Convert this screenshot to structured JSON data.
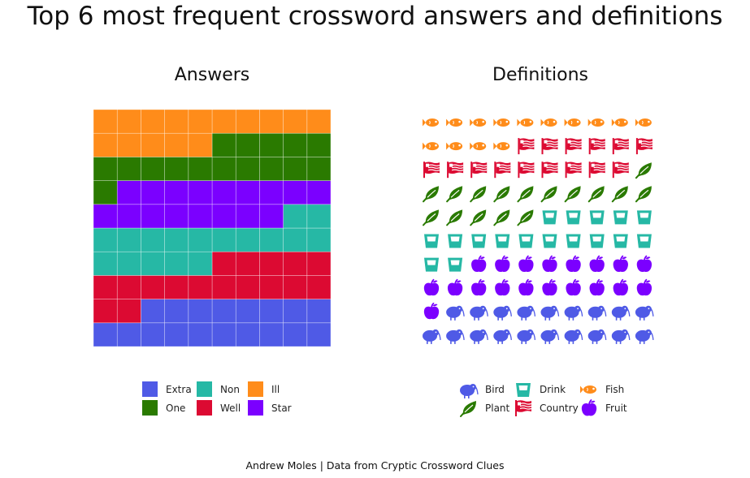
{
  "title": "Top 6 most frequent crossword answers and definitions",
  "caption": "Andrew Moles | Data from Cryptic Crossword Clues",
  "chart_data": [
    {
      "type": "waffle",
      "title": "Answers",
      "cells_total": 100,
      "categories": [
        {
          "name": "Extra",
          "count": 18,
          "color": "#4F5AE6"
        },
        {
          "name": "Well",
          "count": 17,
          "color": "#DC0A32"
        },
        {
          "name": "Non",
          "count": 17,
          "color": "#26B8A5"
        },
        {
          "name": "Star",
          "count": 17,
          "color": "#7B00FF"
        },
        {
          "name": "One",
          "count": 16,
          "color": "#2A7A00"
        },
        {
          "name": "Ill",
          "count": 15,
          "color": "#FF8C1A"
        }
      ],
      "legend_order": [
        "Extra",
        "One",
        "Non",
        "Well",
        "Ill",
        "Star"
      ]
    },
    {
      "type": "pictogram",
      "title": "Definitions",
      "cells_total": 100,
      "categories": [
        {
          "name": "Bird",
          "count": 19,
          "color": "#4F5AE6",
          "icon": "kiwi-bird-icon"
        },
        {
          "name": "Fruit",
          "count": 19,
          "color": "#7B00FF",
          "icon": "apple-icon"
        },
        {
          "name": "Drink",
          "count": 17,
          "color": "#26B8A5",
          "icon": "glass-icon"
        },
        {
          "name": "Plant",
          "count": 16,
          "color": "#2A7A00",
          "icon": "leaf-icon"
        },
        {
          "name": "Country",
          "count": 15,
          "color": "#DC0A32",
          "icon": "flag-icon"
        },
        {
          "name": "Fish",
          "count": 14,
          "color": "#FF8C1A",
          "icon": "fish-icon"
        }
      ],
      "legend_order": [
        "Bird",
        "Plant",
        "Drink",
        "Country",
        "Fish",
        "Fruit"
      ]
    }
  ]
}
